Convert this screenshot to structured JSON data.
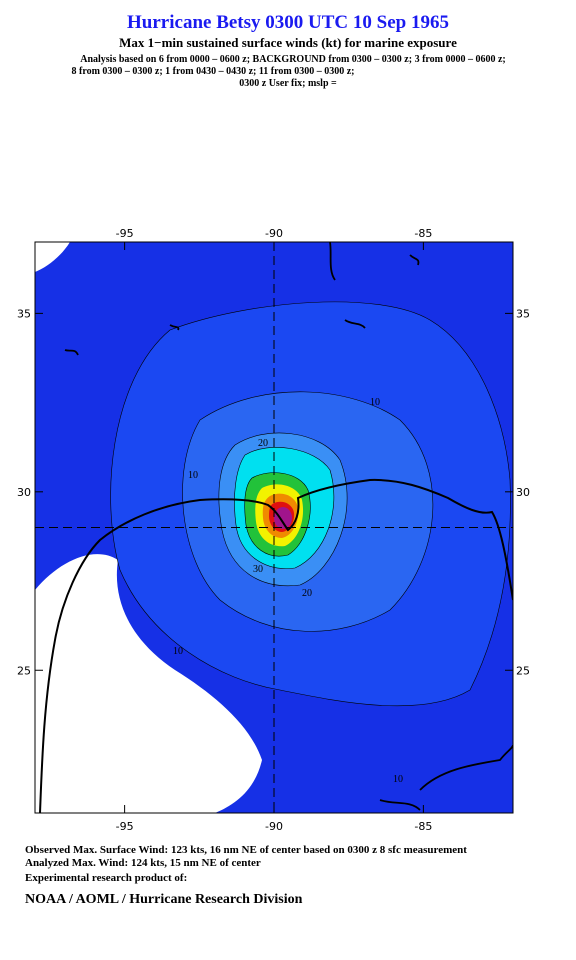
{
  "header": {
    "title": "Hurricane Betsy 0300 UTC 10 Sep 1965",
    "subtitle": "Max 1−min sustained surface winds (kt) for marine exposure",
    "analysis_lines": [
      "Analysis based on  6 from 0000 – 0600 z;  BACKGROUND from 0300 – 0300 z;  3 from 0000 – 0600 z;",
      "8 from 0300 – 0300 z;  1 from 0430 – 0430 z;  11 from 0300 – 0300 z;",
      "0300 z User fix; mslp ="
    ]
  },
  "map": {
    "xlim": [
      -98,
      -82
    ],
    "ylim": [
      21,
      37
    ],
    "xticks": [
      -95,
      -90,
      -85
    ],
    "yticks": [
      25,
      30,
      35
    ],
    "center": [
      -90,
      29
    ],
    "contour_labels": [
      10,
      10,
      20,
      20,
      30,
      10,
      10
    ]
  },
  "footer": {
    "lines": [
      "Observed Max. Surface Wind: 123 kts, 16 nm NE of center based on 0300 z 8 sfc measurement",
      "Analyzed Max. Wind: 124 kts, 15 nm NE of center",
      "Experimental research product of:"
    ],
    "credit": "NOAA / AOML / Hurricane Research Division"
  }
}
